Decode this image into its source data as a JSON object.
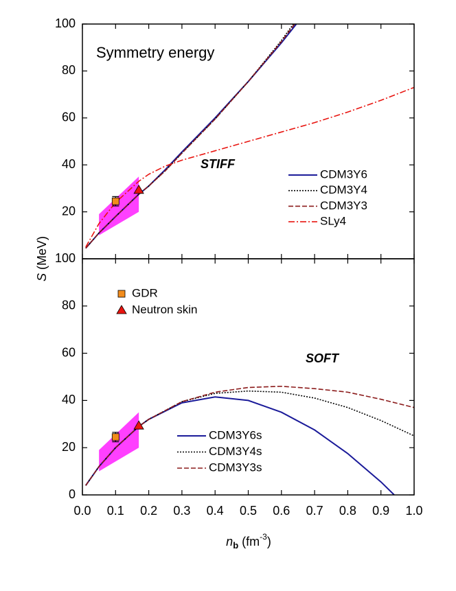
{
  "chart_data": [
    {
      "type": "line",
      "title": "Symmetry energy",
      "label": "STIFF",
      "ylabel": {
        "symbol": "S",
        "unit": "(MeV)"
      },
      "xlim": [
        0,
        1
      ],
      "ylim": [
        0,
        100
      ],
      "yticks": [
        20,
        40,
        60,
        80,
        100
      ],
      "band": {
        "color": "#ff40ff",
        "x": [
          0.05,
          0.17
        ],
        "low": [
          10,
          20
        ],
        "high": [
          19,
          35
        ]
      },
      "series": [
        {
          "name": "CDM3Y6",
          "color": "#1a1a99",
          "dash": "solid",
          "x": [
            0.01,
            0.05,
            0.1,
            0.17,
            0.2,
            0.25,
            0.3,
            0.4,
            0.5,
            0.6,
            0.645
          ],
          "values": [
            4.5,
            11,
            18,
            27.5,
            31,
            38,
            45.5,
            60,
            75.5,
            92,
            100
          ]
        },
        {
          "name": "CDM3Y4",
          "color": "#000000",
          "dash": "dotted",
          "x": [
            0.01,
            0.05,
            0.1,
            0.17,
            0.2,
            0.25,
            0.3,
            0.4,
            0.5,
            0.6,
            0.636
          ],
          "values": [
            4.5,
            11,
            18,
            27.5,
            31,
            37.5,
            45,
            59.5,
            75.5,
            93,
            100
          ]
        },
        {
          "name": "CDM3Y3",
          "color": "#8b1a1a",
          "dash": "dashed",
          "x": [
            0.01,
            0.05,
            0.1,
            0.17,
            0.2,
            0.25,
            0.3,
            0.4,
            0.5,
            0.6,
            0.64
          ],
          "values": [
            4.5,
            11,
            18,
            27.5,
            31,
            37.5,
            45,
            59.5,
            75.5,
            92.5,
            100
          ]
        },
        {
          "name": "SLy4",
          "color": "#e8140f",
          "dash": "dashdot",
          "x": [
            0.01,
            0.05,
            0.1,
            0.17,
            0.2,
            0.25,
            0.3,
            0.4,
            0.5,
            0.6,
            0.7,
            0.8,
            0.9,
            1.0
          ],
          "values": [
            5,
            15,
            24,
            33,
            36,
            39.5,
            42,
            46,
            50,
            54,
            58,
            62.5,
            67.5,
            73
          ]
        }
      ],
      "points": [
        {
          "name": "GDR",
          "marker": "square",
          "color": "#f28c1c",
          "x": [
            0.1
          ],
          "values": [
            24.5
          ],
          "errors": [
            2
          ]
        },
        {
          "name": "Neutron skin",
          "marker": "triangle",
          "color": "#e8140f",
          "x": [
            0.17
          ],
          "values": [
            29.3
          ]
        }
      ],
      "points_legend": false
    },
    {
      "type": "line",
      "label": "SOFT",
      "xlabel": {
        "symbol": "n",
        "subscript": "b",
        "unit": "(fm",
        "exponent": "-3",
        "close": ")"
      },
      "xlim": [
        0,
        1
      ],
      "xticks": [
        {
          "value": 0,
          "label": "0.0"
        },
        0.1,
        0.2,
        0.3,
        0.4,
        0.5,
        0.6,
        0.7,
        0.8,
        0.9,
        {
          "value": 1,
          "label": "1.0"
        }
      ],
      "ylim": [
        0,
        100
      ],
      "yticks": [
        0,
        20,
        40,
        60,
        80,
        100
      ],
      "band": {
        "color": "#ff40ff",
        "x": [
          0.05,
          0.17
        ],
        "low": [
          10,
          20
        ],
        "high": [
          19,
          35
        ]
      },
      "series": [
        {
          "name": "CDM3Y6s",
          "color": "#1a1a99",
          "dash": "solid",
          "x": [
            0.01,
            0.05,
            0.1,
            0.17,
            0.2,
            0.3,
            0.4,
            0.5,
            0.6,
            0.7,
            0.8,
            0.9,
            0.94
          ],
          "values": [
            4,
            12,
            20,
            29,
            32,
            39,
            41.5,
            40,
            35,
            27.5,
            17.5,
            5.5,
            0
          ]
        },
        {
          "name": "CDM3Y4s",
          "color": "#000000",
          "dash": "dotted",
          "x": [
            0.01,
            0.05,
            0.1,
            0.17,
            0.2,
            0.3,
            0.4,
            0.5,
            0.6,
            0.7,
            0.8,
            0.9,
            1.0
          ],
          "values": [
            4,
            12,
            20,
            29,
            32,
            39.5,
            43,
            44,
            43.5,
            41,
            37,
            31.5,
            25
          ]
        },
        {
          "name": "CDM3Y3s",
          "color": "#8b1a1a",
          "dash": "dashed",
          "x": [
            0.01,
            0.05,
            0.1,
            0.17,
            0.2,
            0.3,
            0.4,
            0.5,
            0.6,
            0.7,
            0.8,
            0.9,
            1.0
          ],
          "values": [
            4,
            12,
            20,
            29,
            32,
            39.5,
            43.5,
            45.5,
            46,
            45,
            43.5,
            40.5,
            37
          ]
        }
      ],
      "points": [
        {
          "name": "GDR",
          "marker": "square",
          "color": "#f28c1c",
          "x": [
            0.1
          ],
          "values": [
            24.5
          ],
          "errors": [
            2
          ]
        },
        {
          "name": "Neutron skin",
          "marker": "triangle",
          "color": "#e8140f",
          "x": [
            0.17
          ],
          "values": [
            29.3
          ]
        }
      ],
      "points_legend": true
    }
  ]
}
